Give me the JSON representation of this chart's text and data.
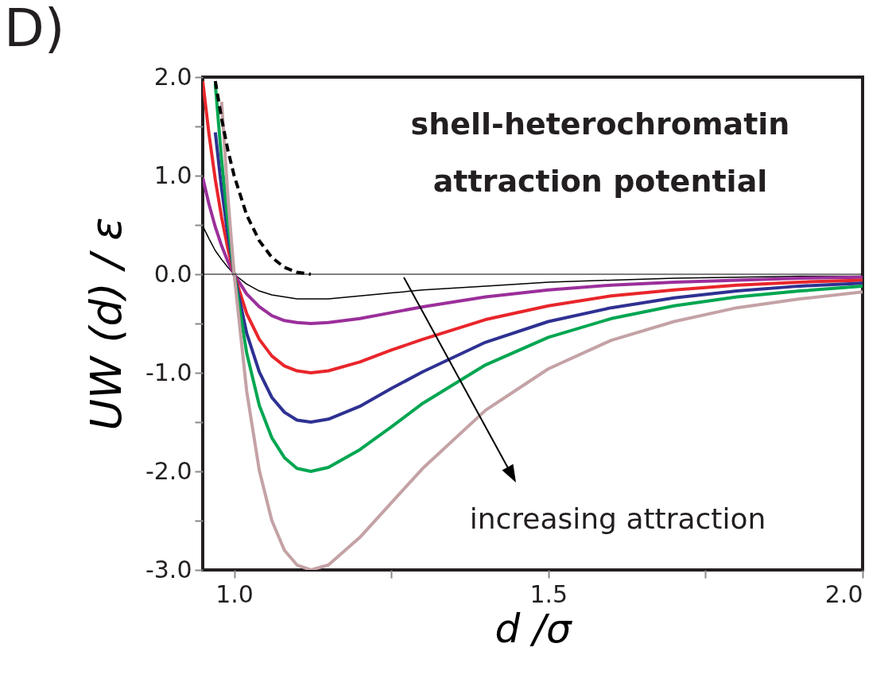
{
  "chart_data": {
    "type": "line",
    "title": "D)",
    "xlabel": "d /σ",
    "ylabel": "UW (d) / ε",
    "x": [
      0.95,
      0.96,
      0.97,
      0.98,
      0.99,
      1.0,
      1.02,
      1.04,
      1.06,
      1.08,
      1.1,
      1.122,
      1.15,
      1.2,
      1.25,
      1.3,
      1.4,
      1.5,
      1.6,
      1.7,
      1.8,
      1.9,
      2.0
    ],
    "series": [
      {
        "color": "#000000",
        "values": [
          0.49,
          0.36,
          0.24,
          0.15,
          0.07,
          0,
          -0.1,
          -0.17,
          -0.21,
          -0.23,
          -0.25,
          -0.25,
          -0.25,
          -0.22,
          -0.19,
          -0.16,
          -0.12,
          -0.08,
          -0.06,
          -0.04,
          -0.03,
          -0.02,
          -0.02
        ]
      },
      {
        "color": "#9b2f9b",
        "values": [
          0.98,
          0.71,
          0.48,
          0.29,
          0.13,
          0,
          -0.2,
          -0.33,
          -0.42,
          -0.47,
          -0.49,
          -0.5,
          -0.49,
          -0.45,
          -0.39,
          -0.33,
          -0.23,
          -0.16,
          -0.11,
          -0.08,
          -0.06,
          -0.04,
          -0.03
        ]
      },
      {
        "color": "#e8262b",
        "values": [
          1.96,
          1.42,
          0.96,
          0.58,
          0.26,
          0,
          -0.4,
          -0.66,
          -0.83,
          -0.93,
          -0.98,
          -1.0,
          -0.98,
          -0.89,
          -0.77,
          -0.66,
          -0.46,
          -0.32,
          -0.22,
          -0.16,
          -0.11,
          -0.08,
          -0.06
        ]
      },
      {
        "color": "#2e3192",
        "values": [
          null,
          null,
          1.44,
          0.87,
          0.4,
          0,
          -0.6,
          -0.99,
          -1.25,
          -1.4,
          -1.48,
          -1.5,
          -1.47,
          -1.34,
          -1.16,
          -0.99,
          -0.69,
          -0.48,
          -0.34,
          -0.24,
          -0.17,
          -0.12,
          -0.09
        ]
      },
      {
        "color": "#00a651",
        "values": [
          null,
          null,
          1.93,
          1.16,
          0.53,
          0,
          -0.8,
          -1.33,
          -1.66,
          -1.86,
          -1.97,
          -2.0,
          -1.96,
          -1.78,
          -1.55,
          -1.31,
          -0.92,
          -0.64,
          -0.45,
          -0.32,
          -0.23,
          -0.17,
          -0.12
        ]
      },
      {
        "color": "#c4a2a5",
        "values": [
          null,
          null,
          null,
          1.75,
          0.79,
          0,
          -1.19,
          -1.99,
          -2.5,
          -2.8,
          -2.95,
          -3.0,
          -2.95,
          -2.67,
          -2.32,
          -1.97,
          -1.38,
          -0.96,
          -0.67,
          -0.48,
          -0.34,
          -0.25,
          -0.18
        ]
      },
      {
        "color": "#000000",
        "line_style": "dashed",
        "x": [
          0.97,
          0.98,
          0.99,
          1.0,
          1.02,
          1.04,
          1.06,
          1.08,
          1.1,
          1.122
        ],
        "values": [
          1.96,
          1.58,
          1.26,
          1.0,
          0.6,
          0.34,
          0.17,
          0.07,
          0.02,
          0
        ]
      }
    ],
    "xlim": [
      0.95,
      2.0
    ],
    "xticks": [
      {
        "value": 1.0,
        "label": "1.0"
      },
      {
        "value": 1.25,
        "label": null
      },
      {
        "value": 1.5,
        "label": "1.5"
      },
      {
        "value": 1.75,
        "label": null
      },
      {
        "value": 2.0,
        "label": "2.0"
      }
    ],
    "ylim": [
      -3.0,
      2.0
    ],
    "yticks": [
      {
        "value": -3.0,
        "label": "-3.0"
      },
      {
        "value": -2.5,
        "label": null
      },
      {
        "value": -2.0,
        "label": "-2.0"
      },
      {
        "value": -1.5,
        "label": null
      },
      {
        "value": -1.0,
        "label": "-1.0"
      },
      {
        "value": -0.5,
        "label": null
      },
      {
        "value": 0.0,
        "label": "0.0"
      },
      {
        "value": 0.5,
        "label": null
      },
      {
        "value": 1.0,
        "label": "1.0"
      },
      {
        "value": 1.5,
        "label": null
      },
      {
        "value": 2.0,
        "label": "2.0"
      }
    ],
    "ref_lines": [
      {
        "axis": "y",
        "value": 0,
        "color": "#000000"
      }
    ],
    "annotations": [
      "shell-heterochromatin attraction potential",
      "increasing attraction"
    ],
    "grid": false,
    "legend": false,
    "marker": "none",
    "line_style": "solid"
  }
}
